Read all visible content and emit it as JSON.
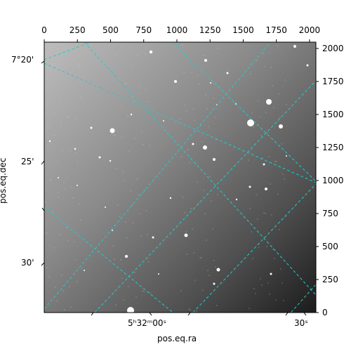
{
  "image": {
    "description_kind": "astronomical-grayscale-image",
    "wcs_grid_color": "#22cccc"
  },
  "axes": {
    "xlabel": "pos.eq.ra",
    "ylabel": "pos.eq.dec",
    "top_ticks": [
      "0",
      "250",
      "500",
      "750",
      "1000",
      "1250",
      "1500",
      "1750",
      "2000"
    ],
    "right_ticks": [
      "0",
      "250",
      "500",
      "750",
      "1000",
      "1250",
      "1500",
      "1750",
      "2000"
    ],
    "left_ticks": [
      "7°20'",
      "25'",
      "30'"
    ],
    "bottom_ticks": {
      "ra_main": "5ʰ32ᵐ00ˢ",
      "ra_secondary": "30ˢ"
    }
  }
}
